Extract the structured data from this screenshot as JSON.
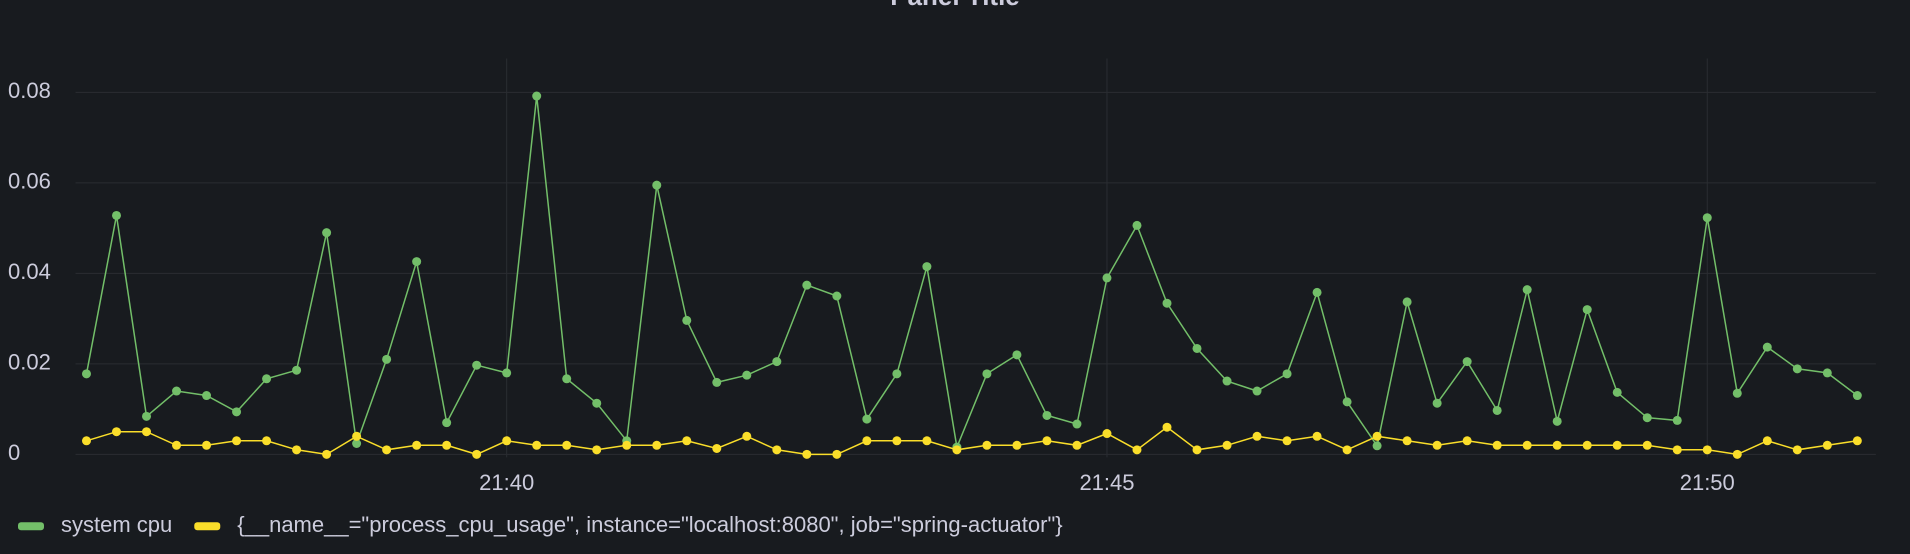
{
  "chart_data": {
    "type": "line",
    "title": "Panel Title",
    "categories": [
      null,
      null,
      null,
      null,
      null,
      null,
      null,
      null,
      null,
      null,
      null,
      null,
      null,
      null,
      "21:40",
      null,
      null,
      null,
      null,
      null,
      null,
      null,
      null,
      null,
      null,
      null,
      null,
      null,
      null,
      null,
      null,
      null,
      null,
      null,
      "21:45",
      null,
      null,
      null,
      null,
      null,
      null,
      null,
      null,
      null,
      null,
      null,
      null,
      null,
      null,
      null,
      null,
      null,
      null,
      null,
      "21:50",
      null,
      null,
      null,
      null,
      null
    ],
    "series": [
      {
        "name": "system cpu",
        "color": "#73bf69",
        "values": [
          0.0178,
          0.0528,
          0.0084,
          0.014,
          0.013,
          0.0094,
          0.0167,
          0.0186,
          0.049,
          0.0024,
          0.021,
          0.0426,
          0.007,
          0.0197,
          0.018,
          0.0792,
          0.0167,
          0.0113,
          0.003,
          0.0595,
          0.0296,
          0.0159,
          0.0175,
          0.0205,
          0.0374,
          0.035,
          0.0078,
          0.0178,
          0.0415,
          0.0016,
          0.0178,
          0.022,
          0.0086,
          0.0067,
          0.039,
          0.0506,
          0.0334,
          0.0234,
          0.0162,
          0.014,
          0.0178,
          0.0358,
          0.0116,
          0.0019,
          0.0337,
          0.0113,
          0.0205,
          0.0097,
          0.0364,
          0.0073,
          0.032,
          0.0137,
          0.0081,
          0.0075,
          0.0523,
          0.0135,
          0.0237,
          0.0189,
          0.018,
          0.013
        ]
      },
      {
        "name": "{__name__=\"process_cpu_usage\", instance=\"localhost:8080\", job=\"spring-actuator\"}",
        "color": "#fade2a",
        "values": [
          0.003,
          0.005,
          0.005,
          0.002,
          0.002,
          0.003,
          0.003,
          0.001,
          0,
          0.004,
          0.001,
          0.002,
          0.002,
          0,
          0.003,
          0.002,
          0.002,
          0.001,
          0.002,
          0.002,
          0.003,
          0.0013,
          0.004,
          0.001,
          0,
          0,
          0.003,
          0.003,
          0.003,
          0.001,
          0.002,
          0.002,
          0.003,
          0.002,
          0.0046,
          0.001,
          0.006,
          0.001,
          0.002,
          0.004,
          0.003,
          0.004,
          0.001,
          0.004,
          0.003,
          0.002,
          0.003,
          0.002,
          0.002,
          0.002,
          0.002,
          0.002,
          0.002,
          0.001,
          0.001,
          0,
          0.003,
          0.001,
          0.002,
          0.003
        ]
      }
    ],
    "ylim": [
      0,
      0.0875
    ],
    "yticks": [
      0,
      0.02,
      0.04,
      0.06,
      0.08
    ],
    "grid": true,
    "legend": "bottom"
  }
}
